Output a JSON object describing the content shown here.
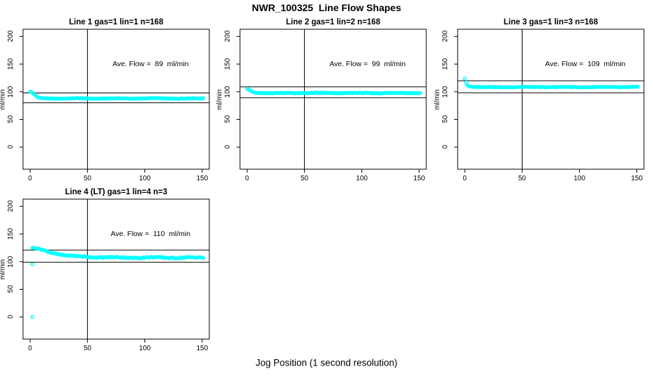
{
  "figure": {
    "title": "NWR_100325  Line Flow Shapes",
    "xlabel": "Jog Position (1 second resolution)",
    "point_color": "#00FFFF",
    "axis_color": "#000000",
    "background": "#FFFFFF"
  },
  "chart_data": [
    {
      "type": "scatter",
      "title": "Line 1 gas=1 lin=1 n=168",
      "annotation": "Ave. Flow =  89  ml/min",
      "ave_flow": 89,
      "ylabel": "ml/min",
      "xticks": [
        0,
        50,
        100,
        150
      ],
      "yticks": [
        0,
        50,
        100,
        150,
        200
      ],
      "xlim": [
        -6.2,
        156.2
      ],
      "ylim": [
        -40,
        213
      ],
      "vline_x": 50,
      "hlines": [
        97.9,
        80.1
      ],
      "keypoints": [
        [
          0,
          100.5
        ],
        [
          1,
          99.5
        ],
        [
          2,
          98
        ],
        [
          3,
          96.5
        ],
        [
          4,
          94.5
        ],
        [
          5,
          92.5
        ],
        [
          6,
          91
        ],
        [
          7,
          89.8
        ],
        [
          8,
          89
        ],
        [
          10,
          88.3
        ],
        [
          14,
          87.9
        ],
        [
          20,
          87.8
        ],
        [
          40,
          88
        ],
        [
          70,
          87.8
        ],
        [
          100,
          88
        ],
        [
          130,
          87.9
        ],
        [
          151,
          87.9
        ]
      ],
      "x_step": 1,
      "x_end": 151,
      "noise": 1.0,
      "outliers": []
    },
    {
      "type": "scatter",
      "title": "Line 2 gas=1 lin=2 n=168",
      "annotation": "Ave. Flow =  99  ml/min",
      "ave_flow": 99,
      "ylabel": "ml/min",
      "xticks": [
        0,
        50,
        100,
        150
      ],
      "yticks": [
        0,
        50,
        100,
        150,
        200
      ],
      "xlim": [
        -6.2,
        156.2
      ],
      "ylim": [
        -40,
        213
      ],
      "vline_x": 50,
      "hlines": [
        108.9,
        89.1
      ],
      "keypoints": [
        [
          0,
          105.5
        ],
        [
          1,
          104.5
        ],
        [
          2,
          103
        ],
        [
          3,
          101.8
        ],
        [
          4,
          100.5
        ],
        [
          5,
          99.7
        ],
        [
          6,
          99
        ],
        [
          8,
          98.2
        ],
        [
          12,
          97.8
        ],
        [
          20,
          97.6
        ],
        [
          50,
          97.8
        ],
        [
          100,
          97.7
        ],
        [
          151,
          97.8
        ]
      ],
      "x_step": 1,
      "x_end": 151,
      "noise": 1.0,
      "outliers": []
    },
    {
      "type": "scatter",
      "title": "Line 3 gas=1 lin=3 n=168",
      "annotation": "Ave. Flow =  109  ml/min",
      "ave_flow": 109,
      "ylabel": "ml/min",
      "xticks": [
        0,
        50,
        100,
        150
      ],
      "yticks": [
        0,
        50,
        100,
        150,
        200
      ],
      "xlim": [
        -6.2,
        156.2
      ],
      "ylim": [
        -40,
        213
      ],
      "vline_x": 50,
      "hlines": [
        119.9,
        98.1
      ],
      "keypoints": [
        [
          0,
          124
        ],
        [
          1,
          117
        ],
        [
          2,
          112.5
        ],
        [
          3,
          110.8
        ],
        [
          4,
          109.8
        ],
        [
          6,
          109
        ],
        [
          10,
          108.6
        ],
        [
          20,
          108.4
        ],
        [
          60,
          108.5
        ],
        [
          100,
          108.4
        ],
        [
          151,
          108.5
        ]
      ],
      "x_step": 1,
      "x_end": 151,
      "noise": 0.8,
      "outliers": []
    },
    {
      "type": "scatter",
      "title": "Line 4 (LT) gas=1 lin=4 n=3",
      "annotation": "Ave. Flow =  110  ml/min",
      "ave_flow": 110,
      "ylabel": "ml/min",
      "xticks": [
        0,
        50,
        100,
        150
      ],
      "yticks": [
        0,
        50,
        100,
        150,
        200
      ],
      "xlim": [
        -6.2,
        156.2
      ],
      "ylim": [
        -40,
        213
      ],
      "vline_x": 50,
      "hlines": [
        121.0,
        99.0
      ],
      "keypoints": [
        [
          2,
          125
        ],
        [
          4,
          124.5
        ],
        [
          6,
          123.8
        ],
        [
          8,
          122.8
        ],
        [
          10,
          121.5
        ],
        [
          13,
          119.5
        ],
        [
          16,
          117.8
        ],
        [
          20,
          115.8
        ],
        [
          24,
          114
        ],
        [
          28,
          112.5
        ],
        [
          33,
          111
        ],
        [
          38,
          110
        ],
        [
          44,
          109.2
        ],
        [
          52,
          108.5
        ],
        [
          60,
          108
        ],
        [
          75,
          107.5
        ],
        [
          90,
          107.3
        ],
        [
          110,
          107.4
        ],
        [
          130,
          107.2
        ],
        [
          151,
          107.2
        ]
      ],
      "x_step": 1,
      "x_end": 151,
      "noise": 1.8,
      "outliers": [
        [
          2,
          95
        ],
        [
          2,
          0
        ]
      ]
    }
  ]
}
